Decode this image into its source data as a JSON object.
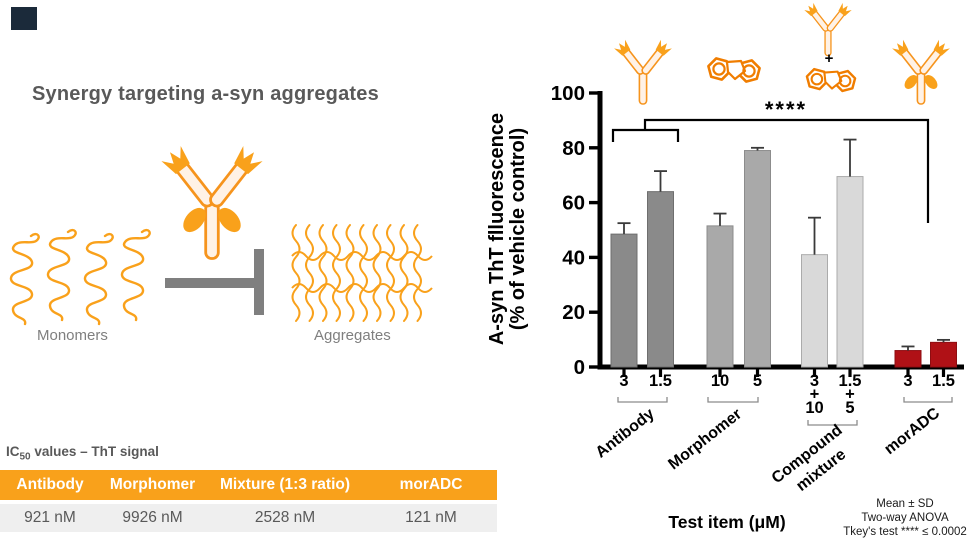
{
  "colors": {
    "brand_orange": "#F9A11B",
    "outline_orange": "#F07D00",
    "corner_accent": "#1B2A3A",
    "table_header_bg": "#F9A11B",
    "table_row_bg": "#EFEFEF",
    "bar_red": "#B01116"
  },
  "left_panel": {
    "title": "Synergy targeting a-syn aggregates",
    "monomers_label": "Monomers",
    "aggregates_label": "Aggregates"
  },
  "ic50_table": {
    "title_prefix": "IC",
    "title_sub": "50",
    "title_rest": " values – ThT signal",
    "headers": [
      "Antibody",
      "Morphomer",
      "Mixture (1:3 ratio)",
      "morADC"
    ],
    "values": [
      "921 nM",
      "9926 nM",
      "2528 nM",
      "121 nM"
    ]
  },
  "chart_data": {
    "type": "bar",
    "title": "",
    "ylabel_line1": "A-syn ThT flluorescence",
    "ylabel_line2": "(% of vehicle control)",
    "xlabel": "Test item (μM)",
    "ylim": [
      0,
      100
    ],
    "yticks": [
      0,
      20,
      40,
      60,
      80,
      100
    ],
    "grid": false,
    "legend": "none",
    "icon_plus": "+",
    "significance": "****",
    "groups": [
      {
        "label": "Antibody",
        "color": "#8A8A8A",
        "edge": "#6E6E6E",
        "bars": [
          {
            "tick": "3",
            "value": 48.5,
            "sd": 4
          },
          {
            "tick": "1.5",
            "value": 64,
            "sd": 7.5
          }
        ]
      },
      {
        "label": "Morphomer",
        "color": "#A9A9A9",
        "edge": "#8C8C8C",
        "bars": [
          {
            "tick": "10",
            "value": 51.5,
            "sd": 4.5
          },
          {
            "tick": "5",
            "value": 79,
            "sd": 1
          }
        ]
      },
      {
        "label": "Compound mixture",
        "color": "#D9D9D9",
        "edge": "#ABABAB",
        "bars": [
          {
            "tick": "3 + 10",
            "value": 41,
            "sd": 13.5
          },
          {
            "tick": "1.5 + 5",
            "value": 69.5,
            "sd": 13.5
          }
        ]
      },
      {
        "label": "morADC",
        "color": "#B01116",
        "edge": "#8E0D11",
        "bars": [
          {
            "tick": "3",
            "value": 6,
            "sd": 1.5
          },
          {
            "tick": "1.5",
            "value": 9,
            "sd": 0.9
          }
        ]
      }
    ],
    "annotations": [
      "Mean ± SD",
      "Two-way ANOVA",
      "Tkey's test **** ≤ 0.0002"
    ]
  }
}
